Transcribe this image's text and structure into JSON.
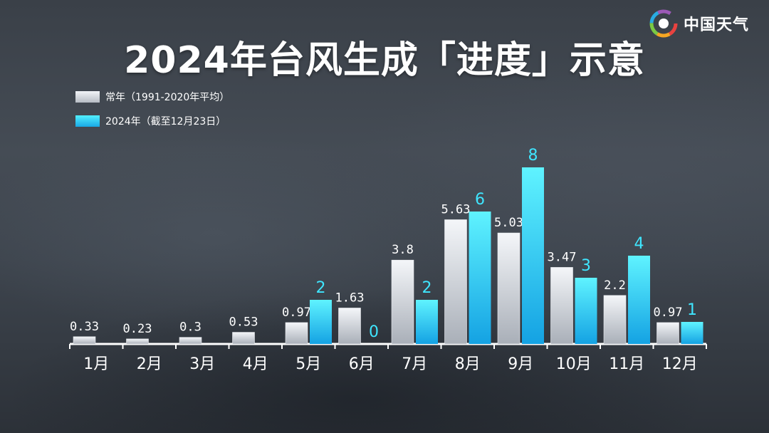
{
  "logo": {
    "text": "中国天气",
    "icon": "china-weather-logo-icon"
  },
  "chart_data": {
    "type": "bar",
    "title": "2024年台风生成「进度」示意",
    "categories": [
      "1月",
      "2月",
      "3月",
      "4月",
      "5月",
      "6月",
      "7月",
      "8月",
      "9月",
      "10月",
      "11月",
      "12月"
    ],
    "series": [
      {
        "name": "常年（1991-2020年平均）",
        "color": "#c8ccd3",
        "values": [
          0.33,
          0.23,
          0.3,
          0.53,
          0.97,
          1.63,
          3.8,
          5.63,
          5.03,
          3.47,
          2.2,
          0.97
        ],
        "labels": [
          "0.33",
          "0.23",
          "0.3",
          "0.53",
          "0.97",
          "1.63",
          "3.8",
          "5.63",
          "5.03",
          "3.47",
          "2.2",
          "0.97"
        ]
      },
      {
        "name": "2024年（截至12月23日）",
        "color": "#22c6f2",
        "values": [
          null,
          null,
          null,
          null,
          2,
          0,
          2,
          6,
          8,
          3,
          4,
          1
        ],
        "labels": [
          "",
          "",
          "",
          "",
          "2",
          "0",
          "2",
          "6",
          "8",
          "3",
          "4",
          "1"
        ]
      }
    ],
    "ylim": [
      0,
      8
    ],
    "legend": "top-left",
    "grid": false,
    "label_colors": {
      "normal": "#ffffff",
      "current": "#3fe6ff"
    }
  }
}
